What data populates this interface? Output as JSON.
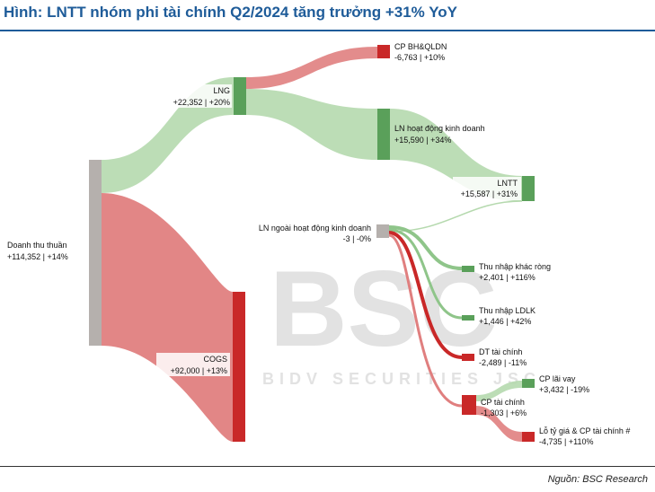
{
  "title": "Hình: LNTT nhóm phi tài chính Q2/2024 tăng trưởng +31% YoY",
  "source": "Nguồn: BSC Research",
  "watermark": {
    "logo": "BSC",
    "subtitle": "BIDV SECURITIES JSC"
  },
  "colors": {
    "accent": "#1f5c99",
    "gain": "#5aa05a",
    "gain_flow": "#b5d9ae",
    "loss": "#c92828",
    "loss_flow": "#e07f7f",
    "neutral": "#b5b0ad"
  },
  "nodes": {
    "revenue": {
      "name": "Doanh thu thuần",
      "value": "+114,352 | +14%"
    },
    "lng": {
      "name": "LNG",
      "value": "+22,352 | +20%"
    },
    "cogs": {
      "name": "COGS",
      "value": "+92,000 | +13%"
    },
    "sga": {
      "name": "CP BH&QLDN",
      "value": "-6,763 | +10%"
    },
    "op": {
      "name": "LN hoạt động kinh doanh",
      "value": "+15,590 | +34%"
    },
    "lntt": {
      "name": "LNTT",
      "value": "+15,587 | +31%"
    },
    "nonop": {
      "name": "LN ngoài hoạt động kinh doanh",
      "value": "-3 | -0%"
    },
    "other": {
      "name": "Thu nhập khác ròng",
      "value": "+2,401 | +116%"
    },
    "ldlk": {
      "name": "Thu nhập LDLK",
      "value": "+1,446 | +42%"
    },
    "finrev": {
      "name": "DT tài chính",
      "value": "-2,489 | -11%"
    },
    "finexp": {
      "name": "CP tài chính",
      "value": "-1,303 | +6%"
    },
    "interest": {
      "name": "CP lãi vay",
      "value": "+3,432 | -19%"
    },
    "fxloss": {
      "name": "Lỗ tỷ giá & CP tài chính #",
      "value": "-4,735 | +110%"
    }
  }
}
